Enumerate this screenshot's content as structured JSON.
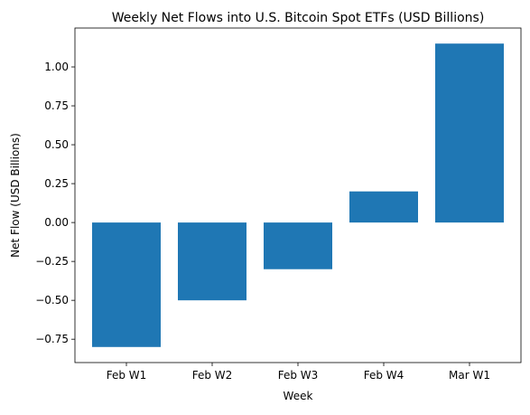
{
  "chart_data": {
    "type": "bar",
    "title": "Weekly Net Flows into U.S. Bitcoin Spot ETFs (USD Billions)",
    "xlabel": "Week",
    "ylabel": "Net Flow (USD Billions)",
    "categories": [
      "Feb W1",
      "Feb W2",
      "Feb W3",
      "Feb W4",
      "Mar W1"
    ],
    "values": [
      -0.8,
      -0.5,
      -0.3,
      0.2,
      1.15
    ],
    "ylim": [
      -0.9,
      1.25
    ],
    "yticks": [
      -0.75,
      -0.5,
      -0.25,
      0.0,
      0.25,
      0.5,
      0.75,
      1.0
    ],
    "ytick_labels": [
      "−0.75",
      "−0.50",
      "−0.25",
      "0.00",
      "0.25",
      "0.50",
      "0.75",
      "1.00"
    ],
    "bar_color": "#1f77b4",
    "grid": false,
    "legend": "none"
  }
}
